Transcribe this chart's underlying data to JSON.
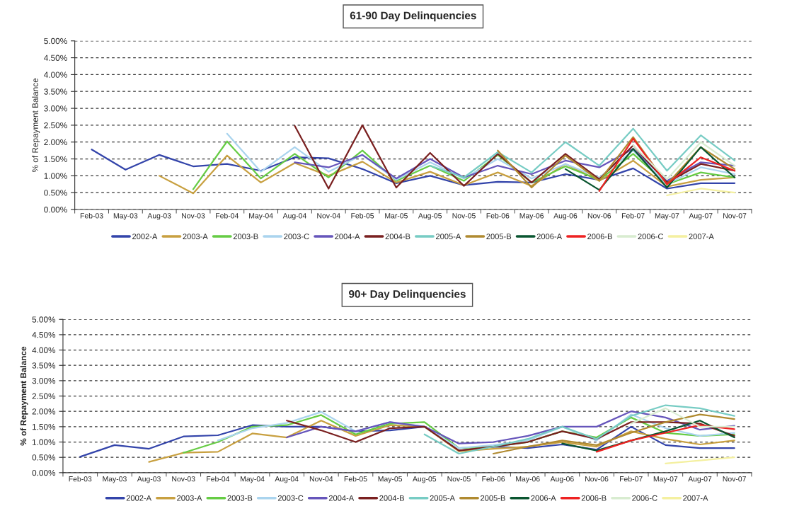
{
  "chart_data": [
    {
      "type": "line",
      "title": "61-90 Day Delinquencies",
      "ylabel": "% of Repayment Balance",
      "categories": [
        "Feb-03",
        "May-03",
        "Aug-03",
        "Nov-03",
        "Feb-04",
        "May-04",
        "Aug-04",
        "Nov-04",
        "Feb-05",
        "Mar-05",
        "Aug-05",
        "Nov-05",
        "Feb-06",
        "May-06",
        "Aug-06",
        "Nov-06",
        "Feb-07",
        "May-07",
        "Aug-07",
        "Nov-07"
      ],
      "ylim": [
        0,
        5
      ],
      "yticks": [
        {
          "value": 0,
          "label": "0.00%"
        },
        {
          "value": 0.5,
          "label": "0.50%"
        },
        {
          "value": 1,
          "label": "1.00%"
        },
        {
          "value": 1.5,
          "label": "1.50%"
        },
        {
          "value": 2,
          "label": "2.00%"
        },
        {
          "value": 2.5,
          "label": "2.50%"
        },
        {
          "value": 3,
          "label": "3.00%"
        },
        {
          "value": 3.5,
          "label": "3.50%"
        },
        {
          "value": 4,
          "label": "4.00%"
        },
        {
          "value": 4.5,
          "label": "4.50%"
        },
        {
          "value": 5,
          "label": "5.00%"
        }
      ],
      "grid": "y",
      "legend": "bottom",
      "line_style": "solid",
      "series": [
        {
          "name": "2002-A",
          "color": "#3344aa",
          "values": [
            1.78,
            1.18,
            1.62,
            1.28,
            1.35,
            1.15,
            1.55,
            1.52,
            1.2,
            0.78,
            1.0,
            0.72,
            0.82,
            0.8,
            1.05,
            0.88,
            1.22,
            0.62,
            0.78,
            0.78
          ]
        },
        {
          "name": "2003-A",
          "color": "#c8a040",
          "values": [
            null,
            null,
            1.0,
            0.48,
            1.6,
            0.8,
            1.38,
            1.0,
            1.42,
            0.8,
            1.12,
            0.72,
            1.1,
            0.7,
            1.35,
            0.85,
            1.45,
            0.68,
            0.88,
            0.95
          ]
        },
        {
          "name": "2003-B",
          "color": "#66cc44",
          "values": [
            null,
            null,
            null,
            0.6,
            2.02,
            0.92,
            1.65,
            0.95,
            1.75,
            0.85,
            1.3,
            0.85,
            1.62,
            0.8,
            1.28,
            0.88,
            1.65,
            0.75,
            1.1,
            0.95
          ]
        },
        {
          "name": "2003-C",
          "color": "#aad4ee",
          "values": [
            null,
            null,
            null,
            null,
            2.25,
            1.12,
            1.85,
            1.12,
            1.62,
            0.88,
            1.4,
            0.92,
            1.5,
            0.92,
            1.35,
            0.95,
            1.75,
            0.75,
            1.25,
            1.05
          ]
        },
        {
          "name": "2004-A",
          "color": "#6655bb",
          "values": [
            null,
            null,
            null,
            null,
            null,
            null,
            1.4,
            1.25,
            1.62,
            0.92,
            1.5,
            0.95,
            1.3,
            1.05,
            1.45,
            1.25,
            1.8,
            0.85,
            1.4,
            1.3
          ]
        },
        {
          "name": "2004-B",
          "color": "#7a2020",
          "values": [
            null,
            null,
            null,
            null,
            null,
            null,
            2.48,
            0.62,
            2.5,
            0.65,
            1.68,
            0.7,
            1.65,
            0.8,
            1.65,
            0.9,
            1.9,
            0.8,
            1.35,
            1.15
          ]
        },
        {
          "name": "2005-A",
          "color": "#77ccc4",
          "values": [
            null,
            null,
            null,
            null,
            null,
            null,
            null,
            null,
            null,
            null,
            1.3,
            0.95,
            1.7,
            1.1,
            2.0,
            1.3,
            2.4,
            1.15,
            2.2,
            1.45
          ]
        },
        {
          "name": "2005-B",
          "color": "#b08a30",
          "values": [
            null,
            null,
            null,
            null,
            null,
            null,
            null,
            null,
            null,
            null,
            null,
            null,
            1.75,
            0.65,
            1.6,
            0.85,
            2.15,
            0.75,
            1.85,
            1.2
          ]
        },
        {
          "name": "2006-A",
          "color": "#0a5530",
          "values": [
            null,
            null,
            null,
            null,
            null,
            null,
            null,
            null,
            null,
            null,
            null,
            null,
            null,
            null,
            1.2,
            0.58,
            1.8,
            0.65,
            1.85,
            0.95
          ]
        },
        {
          "name": "2006-B",
          "color": "#ee2222",
          "values": [
            null,
            null,
            null,
            null,
            null,
            null,
            null,
            null,
            null,
            null,
            null,
            null,
            null,
            null,
            null,
            0.55,
            2.1,
            0.75,
            1.55,
            1.15
          ]
        },
        {
          "name": "2006-C",
          "color": "#d8ecd0",
          "values": [
            null,
            null,
            null,
            null,
            null,
            null,
            null,
            null,
            null,
            null,
            null,
            null,
            null,
            null,
            null,
            null,
            1.9,
            0.9,
            2.0,
            1.3
          ]
        },
        {
          "name": "2007-A",
          "color": "#f4f0a0",
          "values": [
            null,
            null,
            null,
            null,
            null,
            null,
            null,
            null,
            null,
            null,
            null,
            null,
            null,
            null,
            null,
            null,
            null,
            0.42,
            0.62,
            0.5
          ]
        }
      ]
    },
    {
      "type": "line",
      "title": "90+ Day Delinquencies",
      "ylabel": "% of Repayment Balance",
      "categories": [
        "Feb-03",
        "May-03",
        "Aug-03",
        "Nov-03",
        "Feb-04",
        "May-04",
        "Aug-04",
        "Nov-04",
        "Feb-05",
        "May-05",
        "Aug-05",
        "Nov-05",
        "Feb-06",
        "May-06",
        "Aug-06",
        "Nov-06",
        "Feb-07",
        "May-07",
        "Aug-07",
        "Nov-07"
      ],
      "ylim": [
        0,
        5
      ],
      "yticks": [
        {
          "value": 0,
          "label": "0.00%"
        },
        {
          "value": 0.5,
          "label": "0.50%"
        },
        {
          "value": 1,
          "label": "1.00%"
        },
        {
          "value": 1.5,
          "label": "1.50%"
        },
        {
          "value": 2,
          "label": "2.00%"
        },
        {
          "value": 2.5,
          "label": "2.50%"
        },
        {
          "value": 3,
          "label": "3.00%"
        },
        {
          "value": 3.5,
          "label": "3.50%"
        },
        {
          "value": 4,
          "label": "4.00%"
        },
        {
          "value": 4.5,
          "label": "4.50%"
        },
        {
          "value": 5,
          "label": "5.00%"
        }
      ],
      "grid": "y",
      "legend": "bottom",
      "line_style": "solid",
      "series": [
        {
          "name": "2002-A",
          "color": "#3344aa",
          "values": [
            0.52,
            0.9,
            0.78,
            1.18,
            1.22,
            1.55,
            1.5,
            1.5,
            1.35,
            1.38,
            1.5,
            0.72,
            0.85,
            0.8,
            0.92,
            0.75,
            1.5,
            0.9,
            0.8,
            0.8
          ]
        },
        {
          "name": "2003-A",
          "color": "#c8a040",
          "values": [
            null,
            null,
            0.35,
            0.65,
            0.68,
            1.28,
            1.15,
            1.7,
            1.2,
            1.55,
            1.5,
            0.7,
            0.78,
            0.85,
            1.0,
            0.85,
            1.35,
            1.1,
            0.92,
            1.05
          ]
        },
        {
          "name": "2003-B",
          "color": "#66cc44",
          "values": [
            null,
            null,
            null,
            0.65,
            1.0,
            1.5,
            1.55,
            1.88,
            1.25,
            1.6,
            1.65,
            0.8,
            0.85,
            1.0,
            1.35,
            1.15,
            1.8,
            1.3,
            1.2,
            1.25
          ]
        },
        {
          "name": "2003-C",
          "color": "#aad4ee",
          "values": [
            null,
            null,
            null,
            null,
            1.05,
            1.45,
            1.62,
            1.98,
            1.35,
            1.65,
            1.5,
            0.8,
            0.9,
            1.05,
            1.5,
            1.05,
            1.9,
            1.45,
            1.2,
            1.3
          ]
        },
        {
          "name": "2004-A",
          "color": "#6655bb",
          "values": [
            null,
            null,
            null,
            null,
            null,
            null,
            1.15,
            1.5,
            1.35,
            1.65,
            1.5,
            0.95,
            1.0,
            1.2,
            1.5,
            1.5,
            2.0,
            1.8,
            1.4,
            1.53
          ]
        },
        {
          "name": "2004-B",
          "color": "#7a2020",
          "values": [
            null,
            null,
            null,
            null,
            null,
            null,
            1.7,
            1.38,
            1.0,
            1.45,
            1.5,
            0.72,
            0.85,
            1.0,
            1.35,
            1.1,
            1.65,
            1.65,
            1.6,
            1.2
          ]
        },
        {
          "name": "2005-A",
          "color": "#77ccc4",
          "values": [
            null,
            null,
            null,
            null,
            null,
            null,
            null,
            null,
            null,
            null,
            1.25,
            0.62,
            0.85,
            1.1,
            1.5,
            1.1,
            1.85,
            2.2,
            2.1,
            1.85
          ]
        },
        {
          "name": "2005-B",
          "color": "#b08a30",
          "values": [
            null,
            null,
            null,
            null,
            null,
            null,
            null,
            null,
            null,
            null,
            null,
            null,
            0.62,
            0.85,
            1.05,
            0.9,
            1.3,
            1.65,
            1.9,
            1.75
          ]
        },
        {
          "name": "2006-A",
          "color": "#0a5530",
          "values": [
            null,
            null,
            null,
            null,
            null,
            null,
            null,
            null,
            null,
            null,
            null,
            null,
            null,
            null,
            0.95,
            0.72,
            1.05,
            1.35,
            1.7,
            1.15
          ]
        },
        {
          "name": "2006-B",
          "color": "#ee2222",
          "values": [
            null,
            null,
            null,
            null,
            null,
            null,
            null,
            null,
            null,
            null,
            null,
            null,
            null,
            null,
            null,
            0.68,
            1.05,
            1.3,
            1.55,
            1.42
          ]
        },
        {
          "name": "2006-C",
          "color": "#d8ecd0",
          "values": [
            null,
            null,
            null,
            null,
            null,
            null,
            null,
            null,
            null,
            null,
            null,
            null,
            null,
            null,
            null,
            null,
            1.6,
            2.1,
            1.5,
            1.5
          ]
        },
        {
          "name": "2007-A",
          "color": "#f4f0a0",
          "values": [
            null,
            null,
            null,
            null,
            null,
            null,
            null,
            null,
            null,
            null,
            null,
            null,
            null,
            null,
            null,
            null,
            null,
            0.3,
            0.4,
            0.5
          ]
        }
      ]
    }
  ]
}
